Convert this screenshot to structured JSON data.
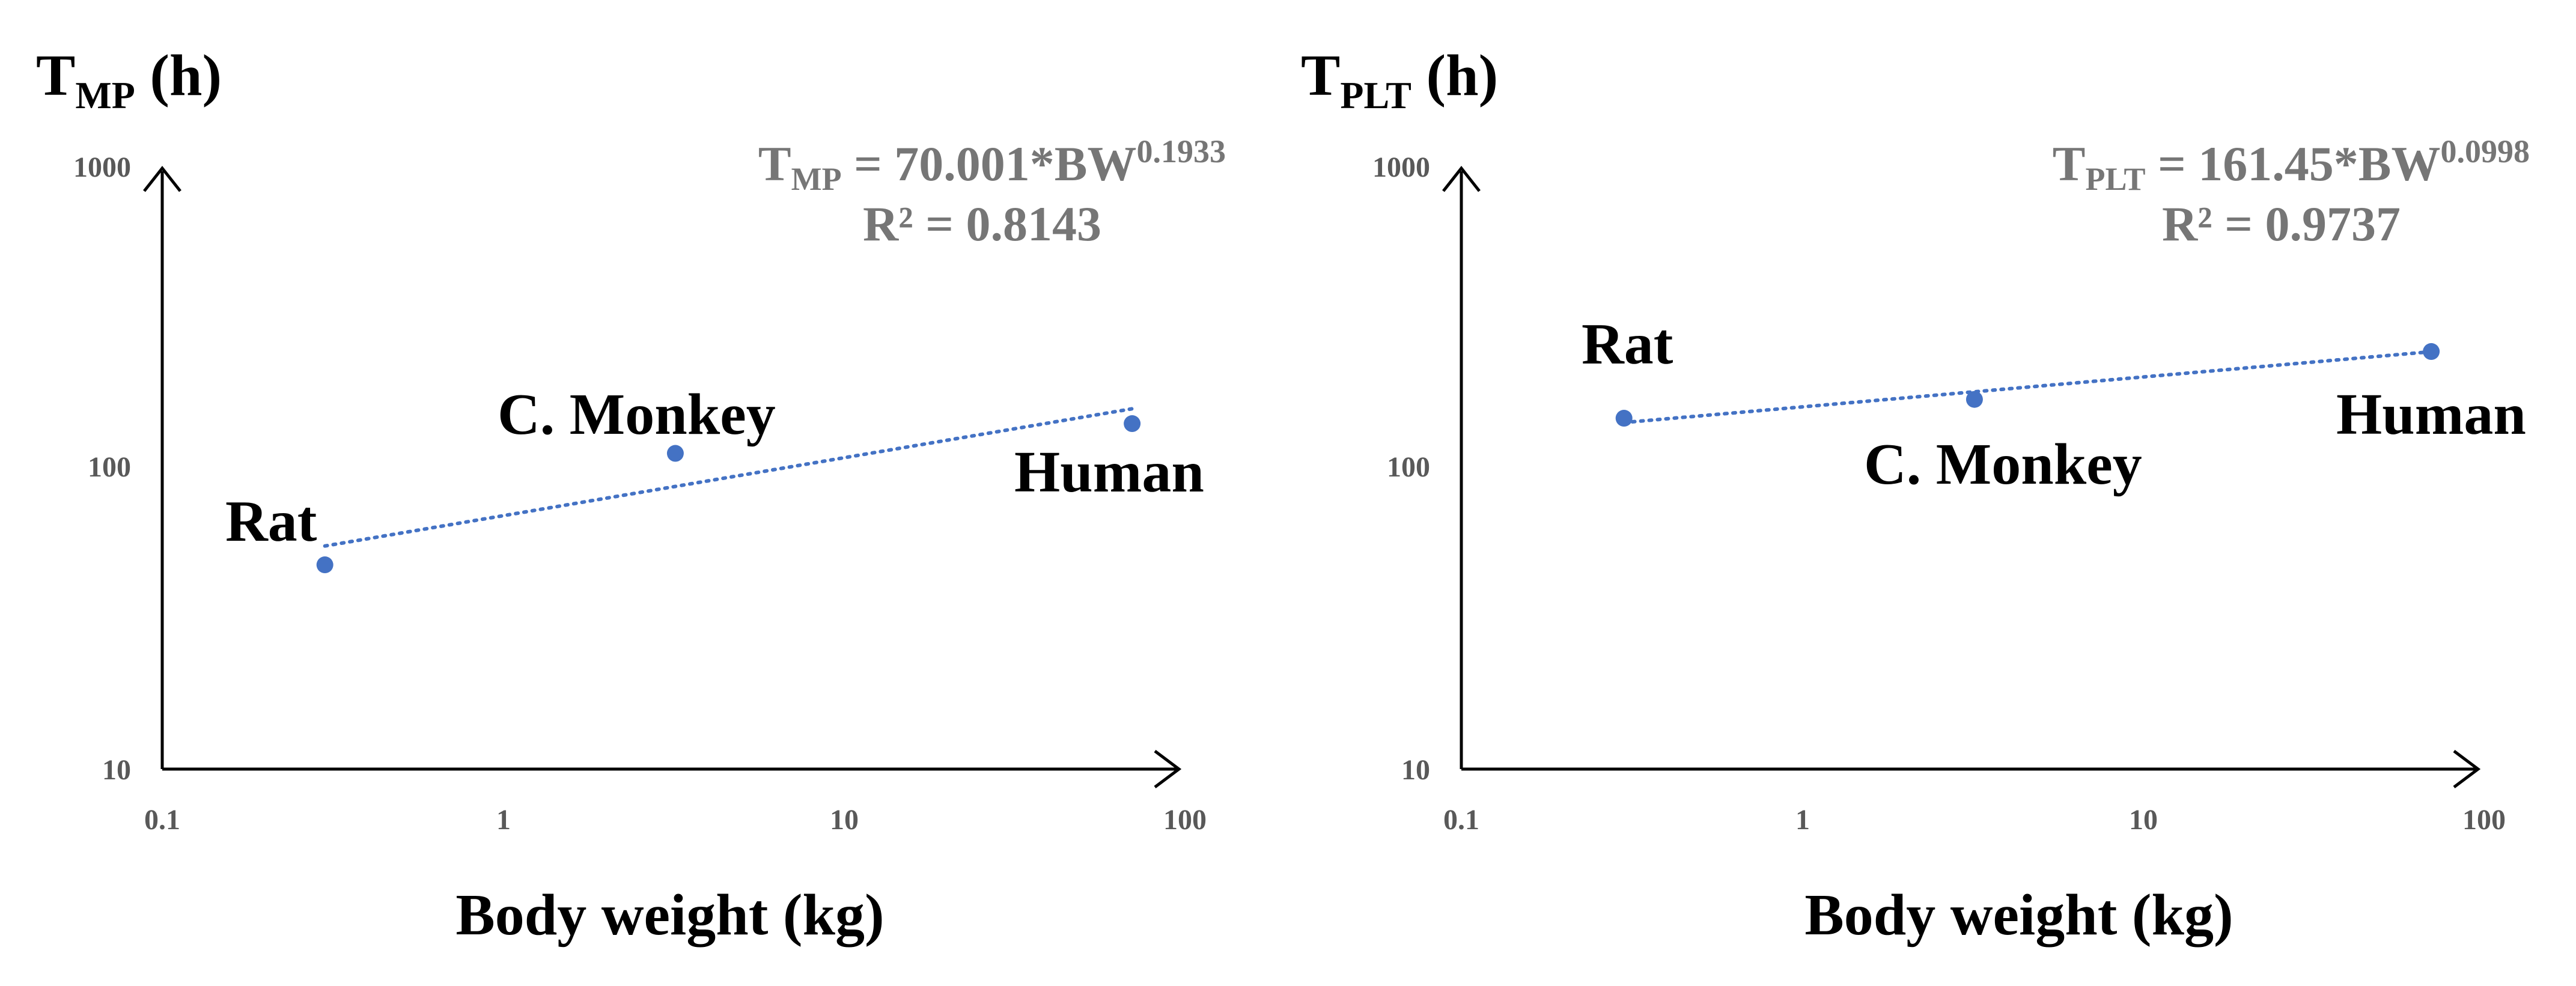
{
  "colors": {
    "point": "#4472C4",
    "trend": "#4472C4",
    "equation": "#767676",
    "axis": "#000000",
    "tick": "#595959"
  },
  "chart_data": [
    {
      "type": "scatter",
      "title": "",
      "ylabel_main": "T",
      "ylabel_sub": "MP",
      "ylabel_unit": " (h)",
      "xlabel": "Body weight (kg)",
      "x_scale": "log",
      "y_scale": "log",
      "xlim": [
        0.1,
        100
      ],
      "ylim": [
        10,
        1000
      ],
      "x_ticks": [
        "0.1",
        "1",
        "10",
        "100"
      ],
      "y_ticks": [
        "10",
        "100",
        "1000"
      ],
      "points": [
        {
          "name": "Rat",
          "x": 0.3,
          "y": 48
        },
        {
          "name": "C. Monkey",
          "x": 3.2,
          "y": 113
        },
        {
          "name": "Human",
          "x": 70,
          "y": 142
        }
      ],
      "trendline": {
        "type": "power",
        "a": 70.001,
        "b": 0.1933,
        "x_from": 0.3,
        "x_to": 70
      },
      "equation_main": "T",
      "equation_sub": "MP",
      "equation_rest": " = 70.001*BW",
      "equation_sup": "0.1933",
      "r2": "R² = 0.8143"
    },
    {
      "type": "scatter",
      "title": "",
      "ylabel_main": "T",
      "ylabel_sub": "PLT",
      "ylabel_unit": " (h)",
      "xlabel": "Body weight (kg)",
      "x_scale": "log",
      "y_scale": "log",
      "xlim": [
        0.1,
        100
      ],
      "ylim": [
        10,
        1000
      ],
      "x_ticks": [
        "0.1",
        "1",
        "10",
        "100"
      ],
      "y_ticks": [
        "10",
        "100",
        "1000"
      ],
      "points": [
        {
          "name": "Rat",
          "x": 0.3,
          "y": 148
        },
        {
          "name": "C. Monkey",
          "x": 3.2,
          "y": 171
        },
        {
          "name": "Human",
          "x": 70,
          "y": 247
        }
      ],
      "trendline": {
        "type": "power",
        "a": 161.45,
        "b": 0.0998,
        "x_from": 0.3,
        "x_to": 70
      },
      "equation_main": "T",
      "equation_sub": "PLT",
      "equation_rest": " = 161.45*BW",
      "equation_sup": "0.0998",
      "r2": "R² = 0.9737"
    }
  ]
}
